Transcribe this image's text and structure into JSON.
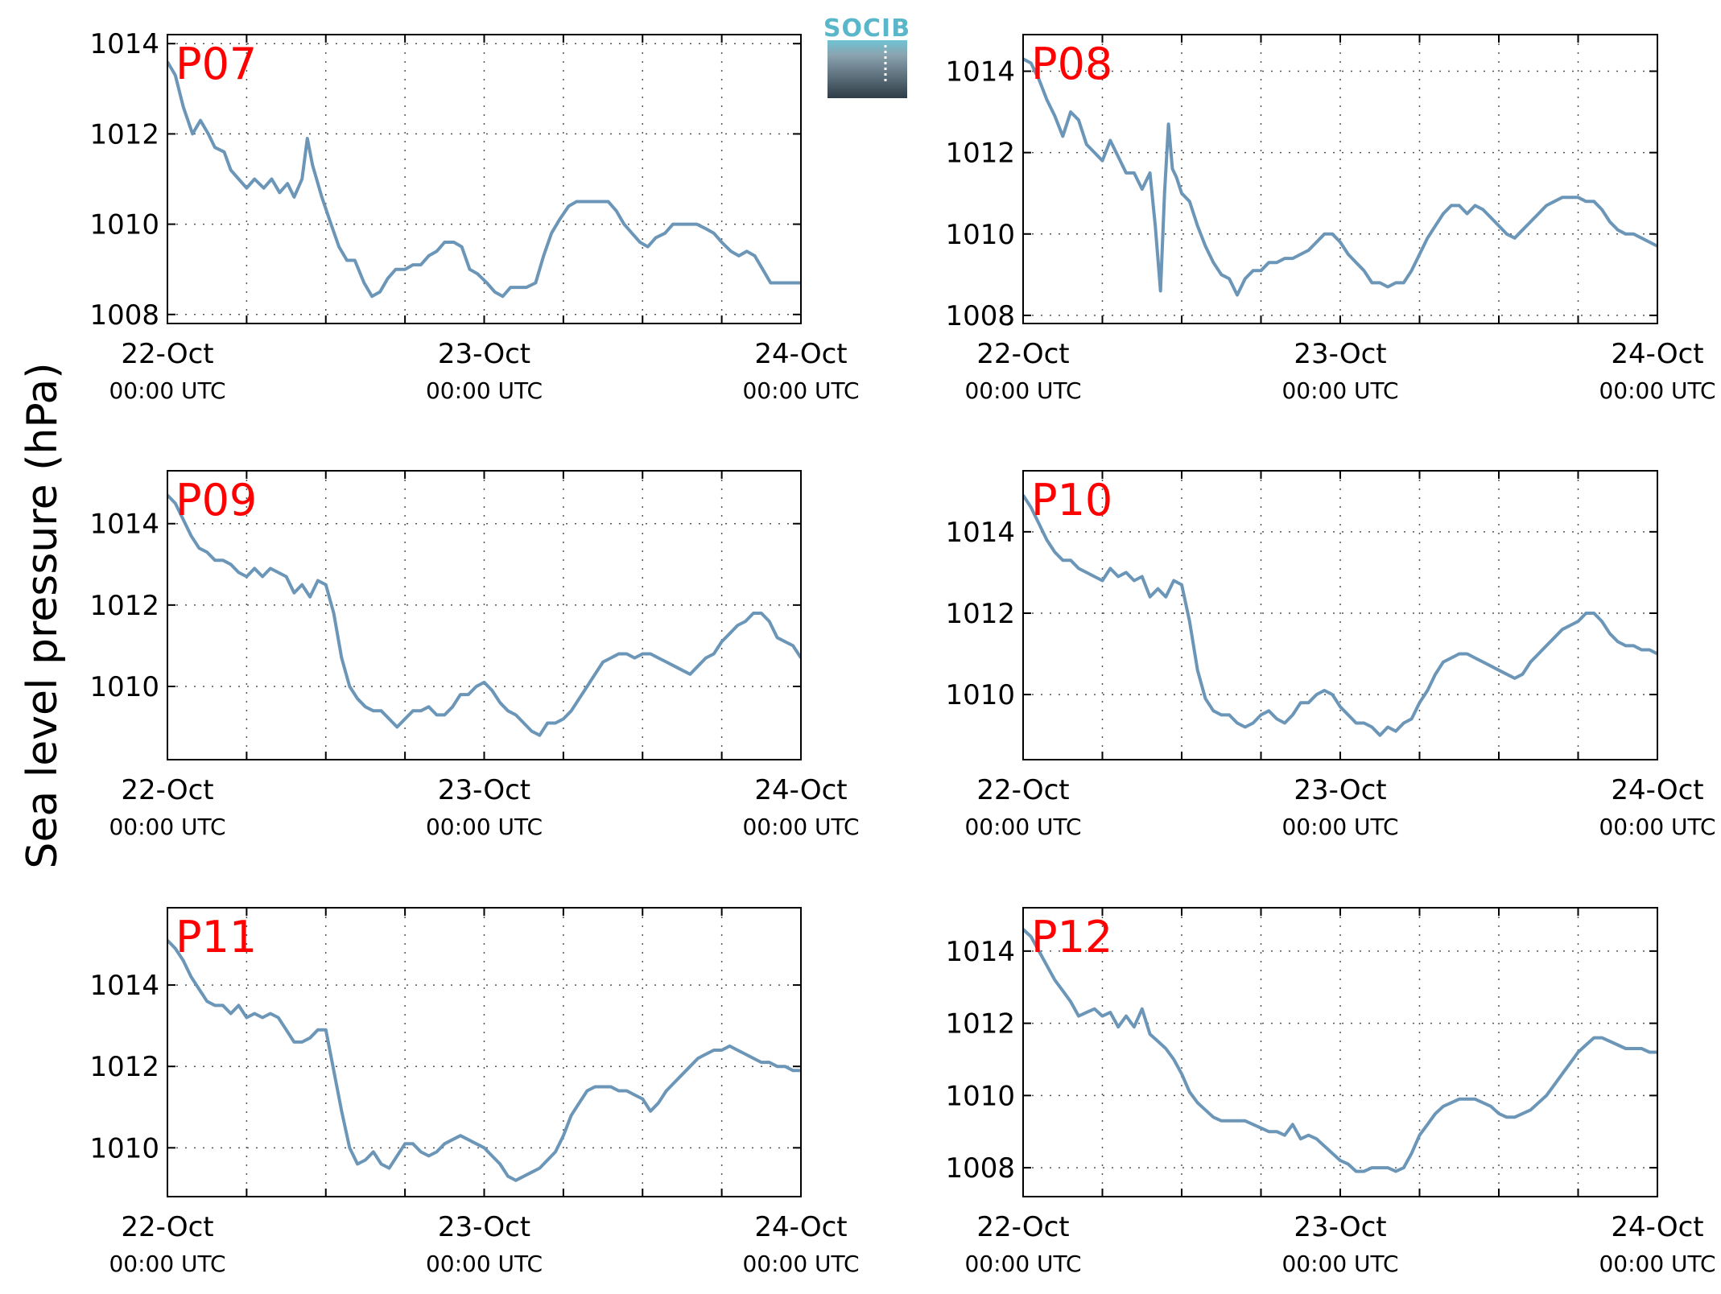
{
  "ylabel": "Sea level pressure (hPa)",
  "logo": {
    "text": "SOCIB"
  },
  "colors": {
    "line": "#6b96b8",
    "label": "#ff0000",
    "grid": "#555555"
  },
  "chart_data": [
    {
      "type": "line",
      "label": "P07",
      "ylim": [
        1007.8,
        1014.2
      ],
      "yticks": [
        1008,
        1010,
        1012,
        1014
      ],
      "xticks": [
        {
          "x": 0,
          "label": "22-Oct",
          "sub": "00:00 UTC"
        },
        {
          "x": 24,
          "label": "23-Oct",
          "sub": "00:00 UTC"
        },
        {
          "x": 48,
          "label": "24-Oct",
          "sub": "00:00 UTC"
        }
      ],
      "xminor": [
        6,
        12,
        18,
        30,
        36,
        42
      ],
      "xlim": [
        0,
        48
      ],
      "x": [
        0,
        0.6,
        1.2,
        1.9,
        2.5,
        3.1,
        3.6,
        4.3,
        4.8,
        5.4,
        6.0,
        6.6,
        7.3,
        7.9,
        8.5,
        9.1,
        9.6,
        10.2,
        10.6,
        11.0,
        11.3,
        11.7,
        12.4,
        13.0,
        13.6,
        14.2,
        14.9,
        15.5,
        16.1,
        16.7,
        17.3,
        18.0,
        18.6,
        19.2,
        19.8,
        20.4,
        21.0,
        21.7,
        22.3,
        22.9,
        23.5,
        24.2,
        24.8,
        25.4,
        26.0,
        26.6,
        27.2,
        27.9,
        28.5,
        29.1,
        29.7,
        30.4,
        31.0,
        31.6,
        32.2,
        32.8,
        33.4,
        34.0,
        34.6,
        35.2,
        35.8,
        36.4,
        37.0,
        37.7,
        38.3,
        38.9,
        39.5,
        40.1,
        40.8,
        41.4,
        42.0,
        42.7,
        43.3,
        43.9,
        44.5,
        45.1,
        45.7,
        46.3,
        47.0,
        47.6,
        48.0
      ],
      "y": [
        1013.6,
        1013.3,
        1012.6,
        1012.0,
        1012.3,
        1012.0,
        1011.7,
        1011.6,
        1011.2,
        1011.0,
        1010.8,
        1011.0,
        1010.8,
        1011.0,
        1010.7,
        1010.9,
        1010.6,
        1011.0,
        1011.9,
        1011.3,
        1011.0,
        1010.6,
        1010.0,
        1009.5,
        1009.2,
        1009.2,
        1008.7,
        1008.4,
        1008.5,
        1008.8,
        1009.0,
        1009.0,
        1009.1,
        1009.1,
        1009.3,
        1009.4,
        1009.6,
        1009.6,
        1009.5,
        1009.0,
        1008.9,
        1008.7,
        1008.5,
        1008.4,
        1008.6,
        1008.6,
        1008.6,
        1008.7,
        1009.3,
        1009.8,
        1010.1,
        1010.4,
        1010.5,
        1010.5,
        1010.5,
        1010.5,
        1010.5,
        1010.3,
        1010.0,
        1009.8,
        1009.6,
        1009.5,
        1009.7,
        1009.8,
        1010.0,
        1010.0,
        1010.0,
        1010.0,
        1009.9,
        1009.8,
        1009.6,
        1009.4,
        1009.3,
        1009.4,
        1009.3,
        1009.0,
        1008.7,
        1008.7,
        1008.7,
        1008.7,
        1008.7
      ]
    },
    {
      "type": "line",
      "label": "P08",
      "ylim": [
        1007.8,
        1014.9
      ],
      "yticks": [
        1008,
        1010,
        1012,
        1014
      ],
      "xticks": [
        {
          "x": 0,
          "label": "22-Oct",
          "sub": "00:00 UTC"
        },
        {
          "x": 24,
          "label": "23-Oct",
          "sub": "00:00 UTC"
        },
        {
          "x": 48,
          "label": "24-Oct",
          "sub": "00:00 UTC"
        }
      ],
      "xminor": [
        6,
        12,
        18,
        30,
        36,
        42
      ],
      "xlim": [
        0,
        48
      ],
      "x": [
        0,
        0.6,
        1.2,
        1.8,
        2.4,
        3.0,
        3.6,
        4.2,
        4.8,
        5.4,
        6.0,
        6.6,
        7.2,
        7.8,
        8.4,
        9.0,
        9.6,
        10.0,
        10.4,
        10.7,
        11.0,
        11.3,
        11.6,
        12.0,
        12.6,
        13.2,
        13.8,
        14.4,
        15.0,
        15.6,
        16.2,
        16.8,
        17.4,
        18.0,
        18.6,
        19.2,
        19.8,
        20.4,
        21.0,
        21.6,
        22.2,
        22.8,
        23.4,
        24.0,
        24.6,
        25.2,
        25.8,
        26.4,
        27.0,
        27.6,
        28.2,
        28.8,
        29.4,
        30.0,
        30.6,
        31.2,
        31.8,
        32.4,
        33.0,
        33.6,
        34.2,
        34.8,
        35.4,
        36.0,
        36.6,
        37.2,
        37.8,
        38.4,
        39.0,
        39.6,
        40.2,
        40.8,
        41.4,
        42.0,
        42.6,
        43.2,
        43.8,
        44.4,
        45.0,
        45.6,
        46.2,
        46.8,
        47.4,
        48.0
      ],
      "y": [
        1014.3,
        1014.2,
        1013.8,
        1013.3,
        1012.9,
        1012.4,
        1013.0,
        1012.8,
        1012.2,
        1012.0,
        1011.8,
        1012.3,
        1011.9,
        1011.5,
        1011.5,
        1011.1,
        1011.5,
        1010.2,
        1008.6,
        1011.0,
        1012.7,
        1011.6,
        1011.4,
        1011.0,
        1010.8,
        1010.2,
        1009.7,
        1009.3,
        1009.0,
        1008.9,
        1008.5,
        1008.9,
        1009.1,
        1009.1,
        1009.3,
        1009.3,
        1009.4,
        1009.4,
        1009.5,
        1009.6,
        1009.8,
        1010.0,
        1010.0,
        1009.8,
        1009.5,
        1009.3,
        1009.1,
        1008.8,
        1008.8,
        1008.7,
        1008.8,
        1008.8,
        1009.1,
        1009.5,
        1009.9,
        1010.2,
        1010.5,
        1010.7,
        1010.7,
        1010.5,
        1010.7,
        1010.6,
        1010.4,
        1010.2,
        1010.0,
        1009.9,
        1010.1,
        1010.3,
        1010.5,
        1010.7,
        1010.8,
        1010.9,
        1010.9,
        1010.9,
        1010.8,
        1010.8,
        1010.6,
        1010.3,
        1010.1,
        1010.0,
        1010.0,
        1009.9,
        1009.8,
        1009.7
      ]
    },
    {
      "type": "line",
      "label": "P09",
      "ylim": [
        1008.2,
        1015.3
      ],
      "yticks": [
        1010,
        1012,
        1014
      ],
      "xticks": [
        {
          "x": 0,
          "label": "22-Oct",
          "sub": "00:00 UTC"
        },
        {
          "x": 24,
          "label": "23-Oct",
          "sub": "00:00 UTC"
        },
        {
          "x": 48,
          "label": "24-Oct",
          "sub": "00:00 UTC"
        }
      ],
      "xminor": [
        6,
        12,
        18,
        30,
        36,
        42
      ],
      "xlim": [
        0,
        48
      ],
      "x": [
        0,
        0.6,
        1.2,
        1.8,
        2.4,
        3.0,
        3.6,
        4.2,
        4.8,
        5.4,
        6.0,
        6.6,
        7.2,
        7.8,
        8.4,
        9.0,
        9.6,
        10.2,
        10.8,
        11.4,
        12.0,
        12.6,
        13.2,
        13.8,
        14.4,
        15.0,
        15.6,
        16.2,
        16.8,
        17.4,
        18.0,
        18.6,
        19.2,
        19.8,
        20.4,
        21.0,
        21.6,
        22.2,
        22.8,
        23.4,
        24.0,
        24.6,
        25.2,
        25.8,
        26.4,
        27.0,
        27.6,
        28.2,
        28.8,
        29.4,
        30.0,
        30.6,
        31.2,
        31.8,
        32.4,
        33.0,
        33.6,
        34.2,
        34.8,
        35.4,
        36.0,
        36.6,
        37.2,
        37.8,
        38.4,
        39.0,
        39.6,
        40.2,
        40.8,
        41.4,
        42.0,
        42.6,
        43.2,
        43.8,
        44.4,
        45.0,
        45.6,
        46.2,
        46.8,
        47.4,
        48.0
      ],
      "y": [
        1014.7,
        1014.5,
        1014.1,
        1013.7,
        1013.4,
        1013.3,
        1013.1,
        1013.1,
        1013.0,
        1012.8,
        1012.7,
        1012.9,
        1012.7,
        1012.9,
        1012.8,
        1012.7,
        1012.3,
        1012.5,
        1012.2,
        1012.6,
        1012.5,
        1011.8,
        1010.7,
        1010.0,
        1009.7,
        1009.5,
        1009.4,
        1009.4,
        1009.2,
        1009.0,
        1009.2,
        1009.4,
        1009.4,
        1009.5,
        1009.3,
        1009.3,
        1009.5,
        1009.8,
        1009.8,
        1010.0,
        1010.1,
        1009.9,
        1009.6,
        1009.4,
        1009.3,
        1009.1,
        1008.9,
        1008.8,
        1009.1,
        1009.1,
        1009.2,
        1009.4,
        1009.7,
        1010.0,
        1010.3,
        1010.6,
        1010.7,
        1010.8,
        1010.8,
        1010.7,
        1010.8,
        1010.8,
        1010.7,
        1010.6,
        1010.5,
        1010.4,
        1010.3,
        1010.5,
        1010.7,
        1010.8,
        1011.1,
        1011.3,
        1011.5,
        1011.6,
        1011.8,
        1011.8,
        1011.6,
        1011.2,
        1011.1,
        1011.0,
        1010.7
      ]
    },
    {
      "type": "line",
      "label": "P10",
      "ylim": [
        1008.4,
        1015.5
      ],
      "yticks": [
        1010,
        1012,
        1014
      ],
      "xticks": [
        {
          "x": 0,
          "label": "22-Oct",
          "sub": "00:00 UTC"
        },
        {
          "x": 24,
          "label": "23-Oct",
          "sub": "00:00 UTC"
        },
        {
          "x": 48,
          "label": "24-Oct",
          "sub": "00:00 UTC"
        }
      ],
      "xminor": [
        6,
        12,
        18,
        30,
        36,
        42
      ],
      "xlim": [
        0,
        48
      ],
      "x": [
        0,
        0.6,
        1.2,
        1.8,
        2.4,
        3.0,
        3.6,
        4.2,
        4.8,
        5.4,
        6.0,
        6.6,
        7.2,
        7.8,
        8.4,
        9.0,
        9.6,
        10.2,
        10.8,
        11.4,
        12.0,
        12.6,
        13.2,
        13.8,
        14.4,
        15.0,
        15.6,
        16.2,
        16.8,
        17.4,
        18.0,
        18.6,
        19.2,
        19.8,
        20.4,
        21.0,
        21.6,
        22.2,
        22.8,
        23.4,
        24.0,
        24.6,
        25.2,
        25.8,
        26.4,
        27.0,
        27.6,
        28.2,
        28.8,
        29.4,
        30.0,
        30.6,
        31.2,
        31.8,
        32.4,
        33.0,
        33.6,
        34.2,
        34.8,
        35.4,
        36.0,
        36.6,
        37.2,
        37.8,
        38.4,
        39.0,
        39.6,
        40.2,
        40.8,
        41.4,
        42.0,
        42.6,
        43.2,
        43.8,
        44.4,
        45.0,
        45.6,
        46.2,
        46.8,
        47.4,
        48.0
      ],
      "y": [
        1014.9,
        1014.6,
        1014.2,
        1013.8,
        1013.5,
        1013.3,
        1013.3,
        1013.1,
        1013.0,
        1012.9,
        1012.8,
        1013.1,
        1012.9,
        1013.0,
        1012.8,
        1012.9,
        1012.4,
        1012.6,
        1012.4,
        1012.8,
        1012.7,
        1011.8,
        1010.6,
        1009.9,
        1009.6,
        1009.5,
        1009.5,
        1009.3,
        1009.2,
        1009.3,
        1009.5,
        1009.6,
        1009.4,
        1009.3,
        1009.5,
        1009.8,
        1009.8,
        1010.0,
        1010.1,
        1010.0,
        1009.7,
        1009.5,
        1009.3,
        1009.3,
        1009.2,
        1009.0,
        1009.2,
        1009.1,
        1009.3,
        1009.4,
        1009.8,
        1010.1,
        1010.5,
        1010.8,
        1010.9,
        1011.0,
        1011.0,
        1010.9,
        1010.8,
        1010.7,
        1010.6,
        1010.5,
        1010.4,
        1010.5,
        1010.8,
        1011.0,
        1011.2,
        1011.4,
        1011.6,
        1011.7,
        1011.8,
        1012.0,
        1012.0,
        1011.8,
        1011.5,
        1011.3,
        1011.2,
        1011.2,
        1011.1,
        1011.1,
        1011.0
      ]
    },
    {
      "type": "line",
      "label": "P11",
      "ylim": [
        1008.8,
        1015.9
      ],
      "yticks": [
        1010,
        1012,
        1014
      ],
      "xticks": [
        {
          "x": 0,
          "label": "22-Oct",
          "sub": "00:00 UTC"
        },
        {
          "x": 24,
          "label": "23-Oct",
          "sub": "00:00 UTC"
        },
        {
          "x": 48,
          "label": "24-Oct",
          "sub": "00:00 UTC"
        }
      ],
      "xminor": [
        6,
        12,
        18,
        30,
        36,
        42
      ],
      "xlim": [
        0,
        48
      ],
      "x": [
        0,
        0.6,
        1.2,
        1.8,
        2.4,
        3.0,
        3.6,
        4.2,
        4.8,
        5.4,
        6.0,
        6.6,
        7.2,
        7.8,
        8.4,
        9.0,
        9.6,
        10.2,
        10.8,
        11.4,
        12.0,
        12.6,
        13.2,
        13.8,
        14.4,
        15.0,
        15.6,
        16.2,
        16.8,
        17.4,
        18.0,
        18.6,
        19.2,
        19.8,
        20.4,
        21.0,
        21.6,
        22.2,
        22.8,
        23.4,
        24.0,
        24.6,
        25.2,
        25.8,
        26.4,
        27.0,
        27.6,
        28.2,
        28.8,
        29.4,
        30.0,
        30.6,
        31.2,
        31.8,
        32.4,
        33.0,
        33.6,
        34.2,
        34.8,
        35.4,
        36.0,
        36.6,
        37.2,
        37.8,
        38.4,
        39.0,
        39.6,
        40.2,
        40.8,
        41.4,
        42.0,
        42.6,
        43.2,
        43.8,
        44.4,
        45.0,
        45.6,
        46.2,
        46.8,
        47.4,
        48.0
      ],
      "y": [
        1015.1,
        1014.9,
        1014.6,
        1014.2,
        1013.9,
        1013.6,
        1013.5,
        1013.5,
        1013.3,
        1013.5,
        1013.2,
        1013.3,
        1013.2,
        1013.3,
        1013.2,
        1012.9,
        1012.6,
        1012.6,
        1012.7,
        1012.9,
        1012.9,
        1011.9,
        1010.9,
        1010.0,
        1009.6,
        1009.7,
        1009.9,
        1009.6,
        1009.5,
        1009.8,
        1010.1,
        1010.1,
        1009.9,
        1009.8,
        1009.9,
        1010.1,
        1010.2,
        1010.3,
        1010.2,
        1010.1,
        1010.0,
        1009.8,
        1009.6,
        1009.3,
        1009.2,
        1009.3,
        1009.4,
        1009.5,
        1009.7,
        1009.9,
        1010.3,
        1010.8,
        1011.1,
        1011.4,
        1011.5,
        1011.5,
        1011.5,
        1011.4,
        1011.4,
        1011.3,
        1011.2,
        1010.9,
        1011.1,
        1011.4,
        1011.6,
        1011.8,
        1012.0,
        1012.2,
        1012.3,
        1012.4,
        1012.4,
        1012.5,
        1012.4,
        1012.3,
        1012.2,
        1012.1,
        1012.1,
        1012.0,
        1012.0,
        1011.9,
        1011.9
      ]
    },
    {
      "type": "line",
      "label": "P12",
      "ylim": [
        1007.2,
        1015.2
      ],
      "yticks": [
        1008,
        1010,
        1012,
        1014
      ],
      "xticks": [
        {
          "x": 0,
          "label": "22-Oct",
          "sub": "00:00 UTC"
        },
        {
          "x": 24,
          "label": "23-Oct",
          "sub": "00:00 UTC"
        },
        {
          "x": 48,
          "label": "24-Oct",
          "sub": "00:00 UTC"
        }
      ],
      "xminor": [
        6,
        12,
        18,
        30,
        36,
        42
      ],
      "xlim": [
        0,
        48
      ],
      "x": [
        0,
        0.6,
        1.2,
        1.8,
        2.4,
        3.0,
        3.6,
        4.2,
        4.8,
        5.4,
        6.0,
        6.6,
        7.2,
        7.8,
        8.4,
        9.0,
        9.6,
        10.2,
        10.8,
        11.4,
        12.0,
        12.6,
        13.2,
        13.8,
        14.4,
        15.0,
        15.6,
        16.2,
        16.8,
        17.4,
        18.0,
        18.6,
        19.2,
        19.8,
        20.4,
        21.0,
        21.6,
        22.2,
        22.8,
        23.4,
        24.0,
        24.6,
        25.2,
        25.8,
        26.4,
        27.0,
        27.6,
        28.2,
        28.8,
        29.4,
        30.0,
        30.6,
        31.2,
        31.8,
        32.4,
        33.0,
        33.6,
        34.2,
        34.8,
        35.4,
        36.0,
        36.6,
        37.2,
        37.8,
        38.4,
        39.0,
        39.6,
        40.2,
        40.8,
        41.4,
        42.0,
        42.6,
        43.2,
        43.8,
        44.4,
        45.0,
        45.6,
        46.2,
        46.8,
        47.4,
        48.0
      ],
      "y": [
        1014.6,
        1014.4,
        1014.0,
        1013.6,
        1013.2,
        1012.9,
        1012.6,
        1012.2,
        1012.3,
        1012.4,
        1012.2,
        1012.3,
        1011.9,
        1012.2,
        1011.9,
        1012.4,
        1011.7,
        1011.5,
        1011.3,
        1011.0,
        1010.6,
        1010.1,
        1009.8,
        1009.6,
        1009.4,
        1009.3,
        1009.3,
        1009.3,
        1009.3,
        1009.2,
        1009.1,
        1009.0,
        1009.0,
        1008.9,
        1009.2,
        1008.8,
        1008.9,
        1008.8,
        1008.6,
        1008.4,
        1008.2,
        1008.1,
        1007.9,
        1007.9,
        1008.0,
        1008.0,
        1008.0,
        1007.9,
        1008.0,
        1008.4,
        1008.9,
        1009.2,
        1009.5,
        1009.7,
        1009.8,
        1009.9,
        1009.9,
        1009.9,
        1009.8,
        1009.7,
        1009.5,
        1009.4,
        1009.4,
        1009.5,
        1009.6,
        1009.8,
        1010.0,
        1010.3,
        1010.6,
        1010.9,
        1011.2,
        1011.4,
        1011.6,
        1011.6,
        1011.5,
        1011.4,
        1011.3,
        1011.3,
        1011.3,
        1011.2,
        1011.2
      ]
    }
  ]
}
